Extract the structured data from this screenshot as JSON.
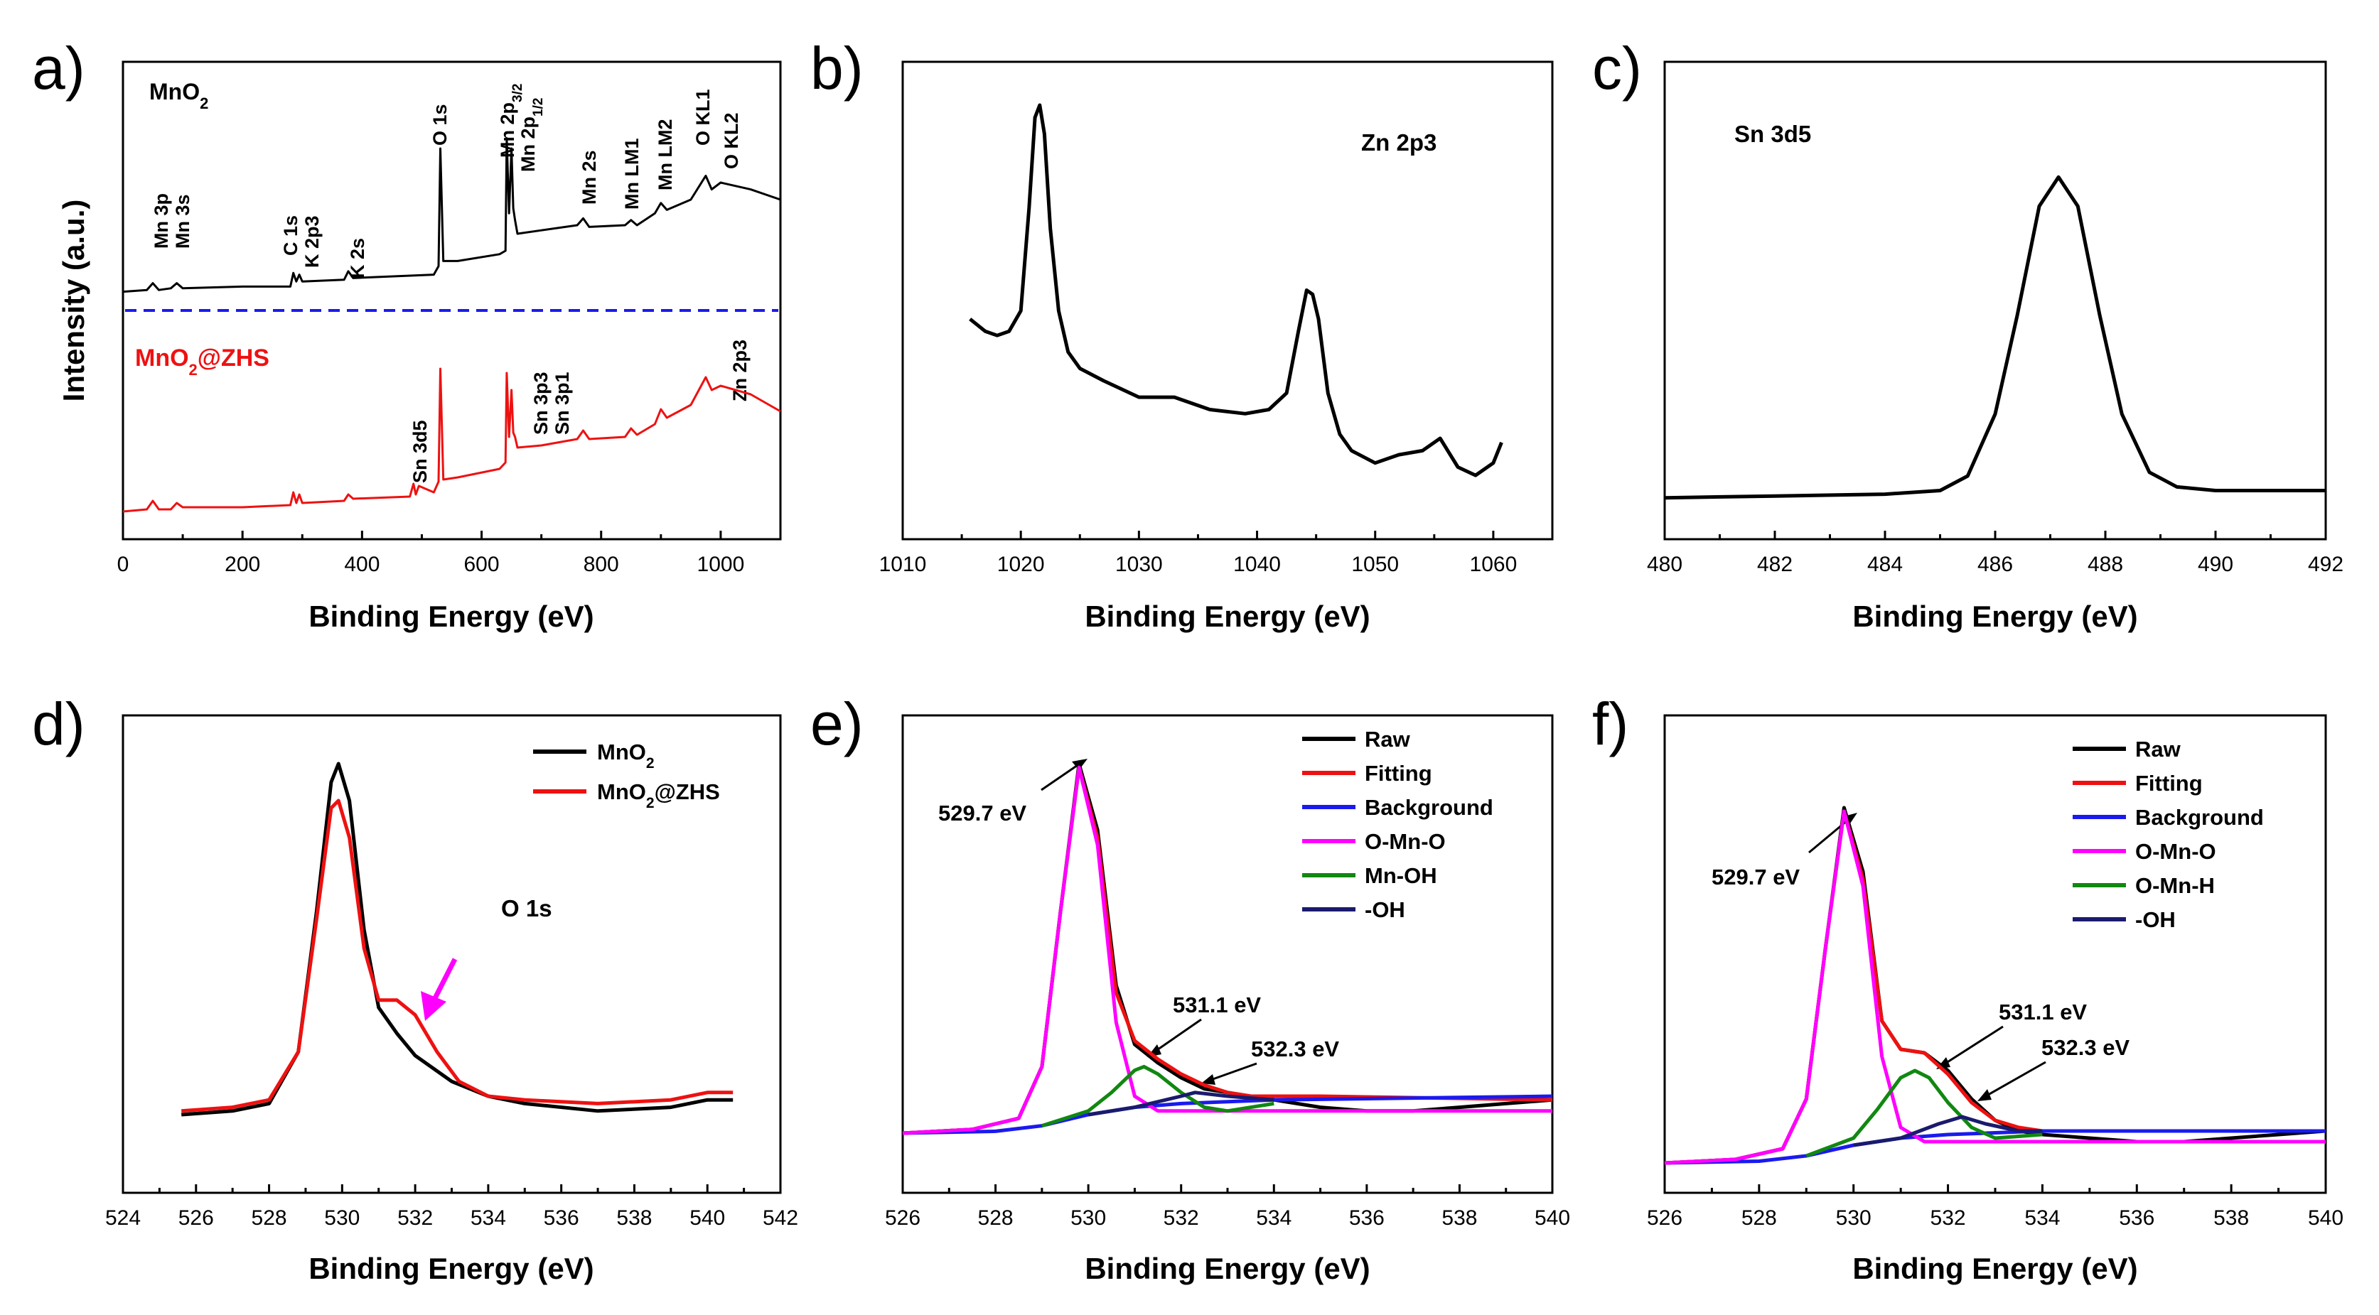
{
  "chart_data": [
    {
      "type": "line",
      "panel": "a)",
      "xlabel": "Binding Energy (eV)",
      "ylabel": "Intensity (a.u.)",
      "xlim": [
        0,
        1100
      ],
      "xticks": [
        "0",
        "200",
        "400",
        "600",
        "800",
        "1000"
      ],
      "grid": false,
      "series": [
        {
          "name": "MnO2",
          "label_html": "MnO<sub>2</sub>",
          "color": "#000000",
          "x": [
            0,
            40,
            50,
            60,
            80,
            90,
            100,
            200,
            280,
            285,
            290,
            295,
            300,
            370,
            377,
            385,
            520,
            528,
            531,
            536,
            560,
            630,
            640,
            642,
            646,
            650,
            653,
            656,
            660,
            700,
            760,
            770,
            780,
            840,
            850,
            860,
            890,
            900,
            910,
            950,
            975,
            985,
            1000,
            1050,
            1100
          ],
          "y": [
            0.06,
            0.07,
            0.11,
            0.07,
            0.08,
            0.11,
            0.08,
            0.09,
            0.09,
            0.17,
            0.12,
            0.16,
            0.12,
            0.13,
            0.18,
            0.14,
            0.16,
            0.21,
            0.9,
            0.24,
            0.24,
            0.28,
            0.3,
            0.96,
            0.52,
            0.9,
            0.55,
            0.48,
            0.4,
            0.42,
            0.45,
            0.49,
            0.44,
            0.45,
            0.48,
            0.45,
            0.52,
            0.58,
            0.54,
            0.6,
            0.74,
            0.66,
            0.7,
            0.66,
            0.6
          ]
        },
        {
          "name": "MnO2@ZHS",
          "label_html": "MnO<sub>2</sub>@ZHS",
          "color": "#ee1111",
          "x": [
            0,
            40,
            50,
            60,
            80,
            90,
            100,
            200,
            280,
            285,
            290,
            295,
            300,
            370,
            377,
            385,
            480,
            486,
            490,
            495,
            520,
            528,
            531,
            536,
            560,
            630,
            640,
            642,
            646,
            650,
            653,
            656,
            660,
            700,
            760,
            770,
            780,
            840,
            850,
            860,
            890,
            900,
            910,
            950,
            975,
            985,
            1000,
            1050,
            1100
          ],
          "y": [
            0.05,
            0.06,
            0.1,
            0.06,
            0.06,
            0.09,
            0.07,
            0.07,
            0.08,
            0.14,
            0.09,
            0.13,
            0.09,
            0.1,
            0.13,
            0.11,
            0.12,
            0.18,
            0.13,
            0.17,
            0.14,
            0.19,
            0.72,
            0.2,
            0.21,
            0.25,
            0.28,
            0.7,
            0.4,
            0.62,
            0.42,
            0.4,
            0.35,
            0.36,
            0.39,
            0.43,
            0.39,
            0.4,
            0.44,
            0.41,
            0.46,
            0.53,
            0.49,
            0.55,
            0.68,
            0.62,
            0.64,
            0.6,
            0.52
          ]
        }
      ],
      "annotations": [
        "Mn 3p",
        "Mn 3s",
        "C 1s",
        "K 2p3",
        "K 2s",
        "O 1s",
        "Mn 2p3/2",
        "Mn 2p1/2",
        "Mn 2s",
        "Mn LM1",
        "Mn LM2",
        "O KL1",
        "O KL2",
        "Sn 3d5",
        "Sn 3p3",
        "Sn 3p1",
        "Zn 2p3"
      ]
    },
    {
      "type": "line",
      "panel": "b)",
      "xlabel": "Binding Energy (eV)",
      "xlim": [
        1010,
        1065
      ],
      "xticks": [
        "1010",
        "1020",
        "1030",
        "1040",
        "1050",
        "1060"
      ],
      "grid": false,
      "label": "Zn 2p3",
      "series": [
        {
          "name": "Zn 2p3",
          "color": "#000000",
          "x": [
            1015.7,
            1017,
            1018,
            1019,
            1020,
            1020.7,
            1021.2,
            1021.6,
            1022,
            1022.5,
            1023.2,
            1024,
            1025,
            1027,
            1030,
            1033,
            1036,
            1039,
            1041,
            1042.5,
            1043.5,
            1044.2,
            1044.7,
            1045.2,
            1046,
            1047,
            1048,
            1050,
            1052,
            1054,
            1055.5,
            1057,
            1058.5,
            1060,
            1060.7
          ],
          "y": [
            0.48,
            0.45,
            0.44,
            0.45,
            0.5,
            0.75,
            0.97,
            1.0,
            0.93,
            0.7,
            0.5,
            0.4,
            0.36,
            0.33,
            0.29,
            0.29,
            0.26,
            0.25,
            0.26,
            0.3,
            0.45,
            0.55,
            0.54,
            0.48,
            0.3,
            0.2,
            0.16,
            0.13,
            0.15,
            0.16,
            0.19,
            0.12,
            0.1,
            0.13,
            0.18
          ]
        }
      ]
    },
    {
      "type": "line",
      "panel": "c)",
      "xlabel": "Binding Energy (eV)",
      "xlim": [
        480,
        492
      ],
      "xticks": [
        "480",
        "482",
        "484",
        "486",
        "488",
        "490",
        "492"
      ],
      "grid": false,
      "label": "Sn 3d5",
      "series": [
        {
          "name": "Sn 3d5",
          "color": "#000000",
          "x": [
            480,
            482,
            484,
            485,
            485.5,
            486,
            486.4,
            486.8,
            487.15,
            487.5,
            487.9,
            488.3,
            488.8,
            489.3,
            490,
            491,
            492
          ],
          "y": [
            0.02,
            0.025,
            0.03,
            0.04,
            0.08,
            0.25,
            0.52,
            0.82,
            0.9,
            0.82,
            0.52,
            0.25,
            0.09,
            0.05,
            0.04,
            0.04,
            0.04
          ]
        }
      ]
    },
    {
      "type": "line",
      "panel": "d)",
      "xlabel": "Binding Energy (eV)",
      "xlim": [
        524,
        542
      ],
      "xticks": [
        "524",
        "526",
        "528",
        "530",
        "532",
        "534",
        "536",
        "538",
        "540",
        "542"
      ],
      "grid": false,
      "label": "O 1s",
      "series": [
        {
          "name": "MnO2",
          "label_html": "MnO<sub>2</sub>",
          "color": "#000000",
          "x": [
            525.6,
            527,
            528,
            528.8,
            529.3,
            529.7,
            529.9,
            530.2,
            530.6,
            531,
            531.5,
            532,
            533,
            534,
            535,
            537,
            539,
            540,
            540.7
          ],
          "y": [
            0.05,
            0.06,
            0.08,
            0.22,
            0.6,
            0.95,
            1.0,
            0.9,
            0.55,
            0.34,
            0.27,
            0.21,
            0.14,
            0.1,
            0.08,
            0.06,
            0.07,
            0.09,
            0.09
          ]
        },
        {
          "name": "MnO2@ZHS",
          "label_html": "MnO<sub>2</sub>@ZHS",
          "color": "#ee1111",
          "x": [
            525.6,
            527,
            528,
            528.8,
            529.3,
            529.7,
            529.9,
            530.2,
            530.6,
            531,
            531.5,
            532,
            532.6,
            533.2,
            534,
            535,
            537,
            539,
            540,
            540.7
          ],
          "y": [
            0.06,
            0.07,
            0.09,
            0.22,
            0.58,
            0.88,
            0.9,
            0.8,
            0.5,
            0.36,
            0.36,
            0.32,
            0.22,
            0.14,
            0.1,
            0.09,
            0.08,
            0.09,
            0.11,
            0.11
          ]
        }
      ],
      "arrow_color": "#ff00ff"
    },
    {
      "type": "line",
      "panel": "e)",
      "xlabel": "Binding Energy (eV)",
      "xlim": [
        526,
        540
      ],
      "xticks": [
        "526",
        "528",
        "530",
        "532",
        "534",
        "536",
        "538",
        "540"
      ],
      "grid": false,
      "peaks": [
        "529.7 eV",
        "531.1 eV",
        "532.3 eV"
      ],
      "series": [
        {
          "name": "Raw",
          "color": "#000000",
          "x": [
            526,
            527.5,
            528.5,
            529,
            529.4,
            529.8,
            530.2,
            530.6,
            531,
            531.5,
            532,
            532.5,
            533,
            534,
            535,
            536,
            537,
            538,
            539,
            540
          ],
          "y": [
            0.0,
            0.01,
            0.04,
            0.18,
            0.6,
            1.0,
            0.82,
            0.4,
            0.24,
            0.19,
            0.15,
            0.12,
            0.11,
            0.09,
            0.07,
            0.06,
            0.06,
            0.07,
            0.08,
            0.09
          ]
        },
        {
          "name": "Fitting",
          "color": "#ee1111",
          "x": [
            526,
            527.5,
            528.5,
            529,
            529.4,
            529.8,
            530.2,
            530.6,
            531,
            531.5,
            532,
            532.5,
            533,
            533.5,
            534,
            535,
            540
          ],
          "y": [
            0.0,
            0.01,
            0.04,
            0.18,
            0.6,
            0.99,
            0.8,
            0.38,
            0.25,
            0.2,
            0.16,
            0.13,
            0.11,
            0.1,
            0.1,
            0.1,
            0.09
          ]
        },
        {
          "name": "Background",
          "color": "#1a1aee",
          "x": [
            526,
            528,
            529,
            530,
            531,
            532,
            533,
            534,
            540
          ],
          "y": [
            0.0,
            0.005,
            0.02,
            0.05,
            0.07,
            0.08,
            0.085,
            0.09,
            0.1
          ]
        },
        {
          "name": "O-Mn-O",
          "color": "#ff00ff",
          "x": [
            526,
            527.5,
            528.5,
            529,
            529.4,
            529.8,
            530.2,
            530.6,
            531,
            531.5,
            532,
            540
          ],
          "y": [
            0.0,
            0.01,
            0.04,
            0.18,
            0.6,
            0.99,
            0.78,
            0.3,
            0.1,
            0.06,
            0.06,
            0.06
          ]
        },
        {
          "name": "Mn-OH",
          "color": "#118811",
          "x": [
            529,
            530,
            530.5,
            531,
            531.2,
            531.5,
            532,
            532.5,
            533,
            534
          ],
          "y": [
            0.02,
            0.06,
            0.11,
            0.17,
            0.18,
            0.16,
            0.11,
            0.07,
            0.06,
            0.08
          ]
        },
        {
          "name": "-OH",
          "color": "#1a1a6e",
          "x": [
            530,
            531,
            532,
            532.3,
            533,
            534
          ],
          "y": [
            0.05,
            0.07,
            0.1,
            0.11,
            0.1,
            0.09
          ]
        }
      ]
    },
    {
      "type": "line",
      "panel": "f)",
      "xlabel": "Binding Energy (eV)",
      "xlim": [
        526,
        540
      ],
      "xticks": [
        "526",
        "528",
        "530",
        "532",
        "534",
        "536",
        "538",
        "540"
      ],
      "grid": false,
      "peaks": [
        "529.7 eV",
        "531.1 eV",
        "532.3 eV"
      ],
      "series": [
        {
          "name": "Raw",
          "color": "#000000",
          "x": [
            526,
            527.5,
            528.5,
            529,
            529.4,
            529.8,
            530.2,
            530.6,
            531,
            531.5,
            532,
            532.5,
            533,
            533.5,
            534,
            535,
            536,
            537,
            538,
            539,
            540
          ],
          "y": [
            0.0,
            0.01,
            0.04,
            0.18,
            0.6,
            1.0,
            0.82,
            0.4,
            0.32,
            0.31,
            0.26,
            0.18,
            0.12,
            0.09,
            0.08,
            0.07,
            0.06,
            0.06,
            0.07,
            0.08,
            0.09
          ]
        },
        {
          "name": "Fitting",
          "color": "#ee1111",
          "x": [
            526,
            527.5,
            528.5,
            529,
            529.4,
            529.8,
            530.2,
            530.6,
            531,
            531.5,
            532,
            532.5,
            533,
            533.5,
            534,
            540
          ],
          "y": [
            0.0,
            0.01,
            0.04,
            0.18,
            0.6,
            0.99,
            0.8,
            0.4,
            0.32,
            0.31,
            0.25,
            0.17,
            0.12,
            0.1,
            0.09,
            0.09
          ]
        },
        {
          "name": "Background",
          "color": "#1a1aee",
          "x": [
            526,
            528,
            529,
            530,
            531,
            532,
            533,
            534,
            540
          ],
          "y": [
            0.0,
            0.005,
            0.02,
            0.05,
            0.07,
            0.08,
            0.085,
            0.09,
            0.09
          ]
        },
        {
          "name": "O-Mn-O",
          "color": "#ff00ff",
          "x": [
            526,
            527.5,
            528.5,
            529,
            529.4,
            529.8,
            530.2,
            530.6,
            531,
            531.5,
            532,
            540
          ],
          "y": [
            0.0,
            0.01,
            0.04,
            0.18,
            0.6,
            0.99,
            0.78,
            0.3,
            0.1,
            0.06,
            0.06,
            0.06
          ]
        },
        {
          "name": "O-Mn-H",
          "color": "#118811",
          "x": [
            529,
            530,
            530.5,
            531,
            531.3,
            531.6,
            532,
            532.5,
            533,
            534
          ],
          "y": [
            0.02,
            0.07,
            0.15,
            0.24,
            0.26,
            0.24,
            0.17,
            0.1,
            0.07,
            0.08
          ]
        },
        {
          "name": "-OH",
          "color": "#1a1a6e",
          "x": [
            530,
            531,
            531.8,
            532.3,
            532.8,
            533.5,
            534
          ],
          "y": [
            0.05,
            0.07,
            0.11,
            0.13,
            0.11,
            0.09,
            0.09
          ]
        }
      ]
    }
  ],
  "panel_a_labels": {
    "sample_top": "MnO",
    "sample_top_sub": "2",
    "sample_bottom": "MnO",
    "sample_bottom_sub": "2",
    "sample_bottom_suffix": "@ZHS",
    "mn2p32_main": "Mn 2p",
    "mn2p32_sub": "3/2",
    "mn2p12_main": "Mn 2p",
    "mn2p12_sub": "1/2"
  },
  "panel_d_legend": {
    "mno2": "MnO",
    "mno2_sub": "2",
    "zhs": "MnO",
    "zhs_sub": "2",
    "zhs_suffix": "@ZHS"
  },
  "colors": {
    "dashed_divider": "#1a1aee",
    "red_label": "#ee1111"
  }
}
